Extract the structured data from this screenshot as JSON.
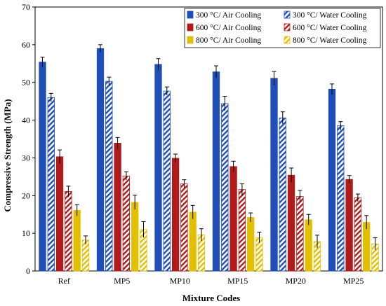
{
  "chart_data": {
    "type": "bar",
    "title": "",
    "xlabel": "Mixture Codes",
    "ylabel": "Compressive Strength (MPa)",
    "ylim": [
      0,
      70
    ],
    "yticks": [
      0,
      10,
      20,
      30,
      40,
      50,
      60,
      70
    ],
    "grid": false,
    "legend_position": "top-right",
    "categories": [
      "Ref",
      "MP5",
      "MP10",
      "MP15",
      "MP20",
      "MP25"
    ],
    "series": [
      {
        "name": "300 °C/ Air Cooling",
        "color": "#1f4eb8",
        "pattern": "solid",
        "values": [
          55.4,
          59.0,
          54.8,
          52.8,
          51.1,
          48.2
        ],
        "errors": [
          1.3,
          1.0,
          1.5,
          1.6,
          1.8,
          1.4
        ]
      },
      {
        "name": "300 °C/ Water Cooling",
        "color": "#1f4eb8",
        "pattern": "hatch",
        "values": [
          46.0,
          50.3,
          47.7,
          44.4,
          40.6,
          38.5
        ],
        "errors": [
          1.1,
          1.1,
          1.1,
          1.9,
          1.6,
          1.1
        ]
      },
      {
        "name": "600 °C/ Air Cooling",
        "color": "#b01c1c",
        "pattern": "solid",
        "values": [
          30.3,
          33.9,
          29.9,
          27.7,
          25.4,
          24.3
        ],
        "errors": [
          1.8,
          1.5,
          1.1,
          1.4,
          1.9,
          1.0
        ]
      },
      {
        "name": "600 °C/ Water Cooling",
        "color": "#b01c1c",
        "pattern": "hatch",
        "values": [
          21.1,
          25.2,
          23.1,
          21.6,
          19.8,
          19.4
        ],
        "errors": [
          1.4,
          1.1,
          1.1,
          1.5,
          1.6,
          1.0
        ]
      },
      {
        "name": "800 °C/ Air Cooling",
        "color": "#e2c000",
        "pattern": "solid",
        "values": [
          16.1,
          18.2,
          15.6,
          14.2,
          13.6,
          12.9
        ],
        "errors": [
          1.5,
          1.9,
          1.8,
          1.2,
          1.4,
          1.8
        ]
      },
      {
        "name": "800 °C/ Water Cooling",
        "color": "#e2c000",
        "pattern": "hatch",
        "values": [
          8.2,
          11.0,
          9.6,
          8.9,
          7.8,
          7.2
        ],
        "errors": [
          1.1,
          2.1,
          1.6,
          1.4,
          1.7,
          1.6
        ]
      }
    ]
  }
}
